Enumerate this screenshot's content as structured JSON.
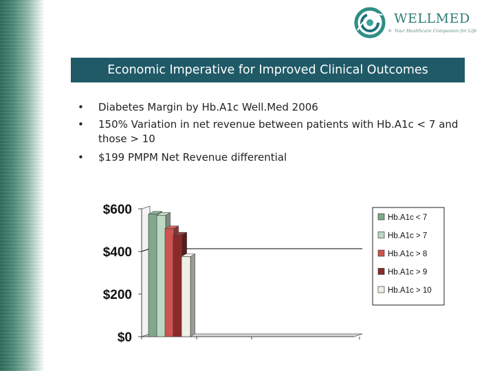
{
  "logo": {
    "name": "WELLMED",
    "registered": "®",
    "tagline": "Your Healthcare Companion for Life"
  },
  "title": "Economic Imperative for Improved Clinical Outcomes",
  "bullets": [
    "Diabetes Margin by Hb.A1c Well.Med 2006",
    "150% Variation in net revenue between patients with Hb.A1c < 7 and those > 10",
    "$199 PMPM Net Revenue differential"
  ],
  "bullet_symbol": "•",
  "colors": {
    "title_bar": "#205a67",
    "series": [
      "#7fa98c",
      "#bcd8c2",
      "#cf5350",
      "#8a2b2b",
      "#f1eee6"
    ],
    "plot_bg": "#ffffff",
    "gridline": "#000000"
  },
  "chart_data": {
    "type": "bar",
    "bar_style": "3d",
    "categories": [
      ""
    ],
    "series": [
      {
        "name": "Hb.A1c < 7",
        "values": [
          575
        ]
      },
      {
        "name": "Hb.A1c > 7",
        "values": [
          570
        ]
      },
      {
        "name": "Hb.A1c > 8",
        "values": [
          507
        ]
      },
      {
        "name": "Hb.A1c > 9",
        "values": [
          477
        ]
      },
      {
        "name": "Hb.A1c > 10",
        "values": [
          376
        ]
      }
    ],
    "y_ticks": [
      "$600",
      "$400",
      "$200",
      "$0"
    ],
    "ylim": [
      0,
      600
    ],
    "gridlines": [
      400
    ],
    "legend_position": "right",
    "title": "",
    "xlabel": "",
    "ylabel": ""
  }
}
